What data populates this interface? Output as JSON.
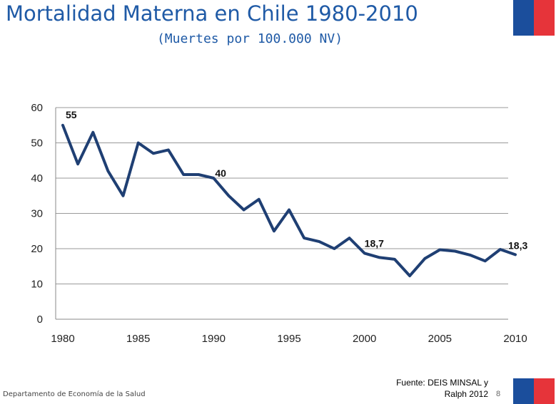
{
  "slide": {
    "title": "Mortalidad Materna en Chile 1980-2010",
    "subtitle": "(Muertes por 100.000 NV)",
    "source_line1": "Fuente: DEIS MINSAL y",
    "source_line2": "Ralph 2012",
    "page_number": "8",
    "footer": "Departamento de Economía de la Salud"
  },
  "colors": {
    "title": "#1f5aa6",
    "line": "#1f3f73",
    "grid": "#9a9a9a",
    "flag_blue": "#1b4e9c",
    "flag_red": "#e6343a"
  },
  "chart_data": {
    "type": "line",
    "title": "",
    "xlabel": "",
    "ylabel": "",
    "xlim": [
      1980,
      2010
    ],
    "ylim": [
      0,
      60
    ],
    "grid": true,
    "x_ticks": [
      1980,
      1985,
      1990,
      1995,
      2000,
      2005,
      2010
    ],
    "y_ticks": [
      0,
      10,
      20,
      30,
      40,
      50,
      60
    ],
    "series": [
      {
        "x": [
          1980,
          1981,
          1982,
          1983,
          1984,
          1985,
          1986,
          1987,
          1988,
          1989,
          1990,
          1991,
          1992,
          1993,
          1994,
          1995,
          1996,
          1997,
          1998,
          1999,
          2000,
          2001,
          2002,
          2003,
          2004,
          2005,
          2006,
          2007,
          2008,
          2009,
          2010
        ],
        "values": [
          55,
          44,
          53,
          42,
          35,
          50,
          47,
          48,
          41,
          41,
          40,
          35,
          31,
          34,
          25,
          31,
          23,
          22,
          20,
          23,
          18.7,
          17.5,
          17,
          12.3,
          17.2,
          19.7,
          19.3,
          18.2,
          16.5,
          19.8,
          18.3
        ]
      }
    ],
    "annotations": [
      {
        "x": 1980,
        "y": 55,
        "text": "55"
      },
      {
        "x": 1990,
        "y": 40,
        "text": "40"
      },
      {
        "x": 2000,
        "y": 18.7,
        "text": "18,7"
      },
      {
        "x": 2010,
        "y": 18.3,
        "text": "18,3"
      }
    ]
  }
}
